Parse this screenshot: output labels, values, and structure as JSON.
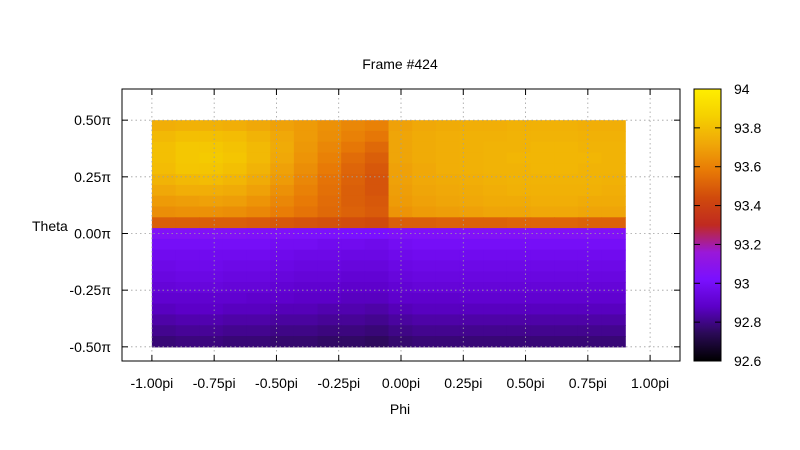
{
  "chart_data": {
    "type": "heatmap",
    "title": "Frame #424",
    "xlabel": "Phi",
    "ylabel": "Theta",
    "xlim": [
      -1.12,
      1.12
    ],
    "ylim": [
      -0.5625,
      0.6375
    ],
    "grid": true,
    "x_ticks": [
      {
        "value": -1.0,
        "label": "-1.00pi"
      },
      {
        "value": -0.75,
        "label": "-0.75pi"
      },
      {
        "value": -0.5,
        "label": "-0.50pi"
      },
      {
        "value": -0.25,
        "label": "-0.25pi"
      },
      {
        "value": 0.0,
        "label": "0.00pi"
      },
      {
        "value": 0.25,
        "label": "0.25pi"
      },
      {
        "value": 0.5,
        "label": "0.50pi"
      },
      {
        "value": 0.75,
        "label": "0.75pi"
      },
      {
        "value": 1.0,
        "label": "1.00pi"
      }
    ],
    "y_ticks": [
      {
        "value": 0.5,
        "label": "0.50π"
      },
      {
        "value": 0.25,
        "label": "0.25π"
      },
      {
        "value": 0.0,
        "label": "0.00π"
      },
      {
        "value": -0.25,
        "label": "-0.25π"
      },
      {
        "value": -0.5,
        "label": "-0.50π"
      }
    ],
    "colorbar": {
      "range": [
        92.6,
        94.0
      ],
      "ticks": [
        {
          "value": 94.0,
          "label": "94"
        },
        {
          "value": 93.8,
          "label": "93.8"
        },
        {
          "value": 93.6,
          "label": "93.6"
        },
        {
          "value": 93.4,
          "label": "93.4"
        },
        {
          "value": 93.2,
          "label": "93.2"
        },
        {
          "value": 93.0,
          "label": "93"
        },
        {
          "value": 92.8,
          "label": "92.8"
        },
        {
          "value": 92.6,
          "label": "92.6"
        }
      ],
      "palette": [
        "#000000",
        "#2a0a55",
        "#5c00c8",
        "#7a10ff",
        "#9a18d8",
        "#c02a20",
        "#d04a0c",
        "#e87a06",
        "#f0a808",
        "#f5d000",
        "#ffee00"
      ]
    },
    "phi_range": [
      -1.0,
      0.9
    ],
    "theta_range": [
      -0.5,
      0.5
    ],
    "values_phi": [
      -1.0,
      -0.9,
      -0.8,
      -0.7,
      -0.6,
      -0.5,
      -0.4,
      -0.3,
      -0.2,
      -0.1,
      0.0,
      0.1,
      0.2,
      0.3,
      0.4,
      0.5,
      0.6,
      0.7,
      0.8,
      0.9
    ],
    "values_theta": [
      0.5,
      0.45,
      0.4,
      0.35,
      0.3,
      0.25,
      0.2,
      0.15,
      0.1,
      0.05,
      0.0,
      -0.05,
      -0.1,
      -0.15,
      -0.2,
      -0.25,
      -0.3,
      -0.35,
      -0.4,
      -0.45,
      -0.5
    ],
    "values": [
      [
        93.74,
        93.75,
        93.75,
        93.74,
        93.72,
        93.7,
        93.68,
        93.65,
        93.62,
        93.6,
        93.7,
        93.72,
        93.73,
        93.74,
        93.74,
        93.75,
        93.75,
        93.75,
        93.74,
        93.74
      ],
      [
        93.78,
        93.8,
        93.8,
        93.79,
        93.76,
        93.72,
        93.68,
        93.64,
        93.6,
        93.57,
        93.71,
        93.73,
        93.74,
        93.75,
        93.75,
        93.76,
        93.76,
        93.76,
        93.75,
        93.75
      ],
      [
        93.8,
        93.83,
        93.83,
        93.81,
        93.78,
        93.73,
        93.67,
        93.62,
        93.57,
        93.53,
        93.71,
        93.73,
        93.74,
        93.75,
        93.76,
        93.76,
        93.77,
        93.77,
        93.76,
        93.76
      ],
      [
        93.8,
        93.83,
        93.84,
        93.82,
        93.78,
        93.72,
        93.66,
        93.6,
        93.54,
        93.5,
        93.71,
        93.73,
        93.74,
        93.75,
        93.76,
        93.77,
        93.77,
        93.77,
        93.77,
        93.76
      ],
      [
        93.79,
        93.82,
        93.82,
        93.8,
        93.76,
        93.7,
        93.64,
        93.58,
        93.52,
        93.48,
        93.7,
        93.72,
        93.74,
        93.75,
        93.76,
        93.76,
        93.77,
        93.77,
        93.76,
        93.76
      ],
      [
        93.76,
        93.78,
        93.79,
        93.77,
        93.73,
        93.68,
        93.62,
        93.56,
        93.51,
        93.47,
        93.7,
        93.72,
        93.73,
        93.74,
        93.75,
        93.76,
        93.76,
        93.76,
        93.76,
        93.75
      ],
      [
        93.72,
        93.74,
        93.74,
        93.73,
        93.7,
        93.65,
        93.6,
        93.55,
        93.5,
        93.47,
        93.69,
        93.71,
        93.72,
        93.73,
        93.74,
        93.75,
        93.75,
        93.75,
        93.75,
        93.74
      ],
      [
        93.68,
        93.69,
        93.7,
        93.69,
        93.66,
        93.62,
        93.58,
        93.54,
        93.5,
        93.48,
        93.68,
        93.7,
        93.71,
        93.72,
        93.73,
        93.73,
        93.74,
        93.74,
        93.73,
        93.73
      ],
      [
        93.64,
        93.65,
        93.65,
        93.64,
        93.62,
        93.59,
        93.56,
        93.53,
        93.51,
        93.49,
        93.66,
        93.68,
        93.69,
        93.7,
        93.71,
        93.71,
        93.72,
        93.72,
        93.71,
        93.71
      ],
      [
        93.5,
        93.5,
        93.5,
        93.5,
        93.49,
        93.48,
        93.47,
        93.46,
        93.45,
        93.44,
        93.5,
        93.5,
        93.51,
        93.51,
        93.51,
        93.52,
        93.52,
        93.52,
        93.51,
        93.51
      ],
      [
        93.05,
        93.05,
        93.05,
        93.05,
        93.04,
        93.04,
        93.03,
        93.03,
        93.02,
        93.02,
        93.04,
        93.04,
        93.04,
        93.05,
        93.05,
        93.05,
        93.05,
        93.05,
        93.05,
        93.05
      ],
      [
        93.0,
        93.0,
        93.0,
        93.0,
        93.0,
        92.99,
        92.99,
        92.98,
        92.98,
        92.97,
        92.99,
        93.0,
        93.0,
        93.0,
        93.0,
        93.0,
        93.0,
        93.0,
        93.0,
        93.0
      ],
      [
        92.98,
        92.98,
        92.98,
        92.98,
        92.98,
        92.97,
        92.96,
        92.96,
        92.95,
        92.95,
        92.97,
        92.98,
        92.98,
        92.98,
        92.98,
        92.98,
        92.98,
        92.98,
        92.98,
        92.98
      ],
      [
        92.96,
        92.97,
        92.97,
        92.96,
        92.96,
        92.95,
        92.94,
        92.94,
        92.93,
        92.93,
        92.95,
        92.96,
        92.96,
        92.96,
        92.96,
        92.96,
        92.96,
        92.96,
        92.96,
        92.96
      ],
      [
        92.94,
        92.95,
        92.95,
        92.94,
        92.94,
        92.93,
        92.92,
        92.92,
        92.91,
        92.91,
        92.93,
        92.94,
        92.94,
        92.94,
        92.94,
        92.94,
        92.94,
        92.94,
        92.94,
        92.94
      ],
      [
        92.92,
        92.93,
        92.93,
        92.92,
        92.92,
        92.91,
        92.9,
        92.9,
        92.89,
        92.89,
        92.91,
        92.92,
        92.92,
        92.92,
        92.92,
        92.92,
        92.92,
        92.92,
        92.92,
        92.92
      ],
      [
        92.9,
        92.9,
        92.9,
        92.9,
        92.89,
        92.89,
        92.88,
        92.88,
        92.87,
        92.87,
        92.89,
        92.89,
        92.89,
        92.9,
        92.9,
        92.9,
        92.9,
        92.9,
        92.9,
        92.9
      ],
      [
        92.87,
        92.88,
        92.88,
        92.87,
        92.87,
        92.86,
        92.86,
        92.85,
        92.85,
        92.84,
        92.86,
        92.87,
        92.87,
        92.87,
        92.87,
        92.87,
        92.87,
        92.87,
        92.87,
        92.87
      ],
      [
        92.84,
        92.85,
        92.85,
        92.84,
        92.84,
        92.83,
        92.83,
        92.82,
        92.82,
        92.81,
        92.83,
        92.84,
        92.84,
        92.84,
        92.84,
        92.84,
        92.84,
        92.84,
        92.84,
        92.84
      ],
      [
        92.81,
        92.82,
        92.82,
        92.81,
        92.81,
        92.8,
        92.8,
        92.79,
        92.79,
        92.78,
        92.8,
        92.81,
        92.81,
        92.81,
        92.81,
        92.81,
        92.81,
        92.81,
        92.81,
        92.81
      ],
      [
        92.78,
        92.79,
        92.79,
        92.78,
        92.78,
        92.77,
        92.77,
        92.76,
        92.76,
        92.75,
        92.77,
        92.78,
        92.78,
        92.78,
        92.78,
        92.78,
        92.78,
        92.78,
        92.78,
        92.78
      ]
    ]
  }
}
